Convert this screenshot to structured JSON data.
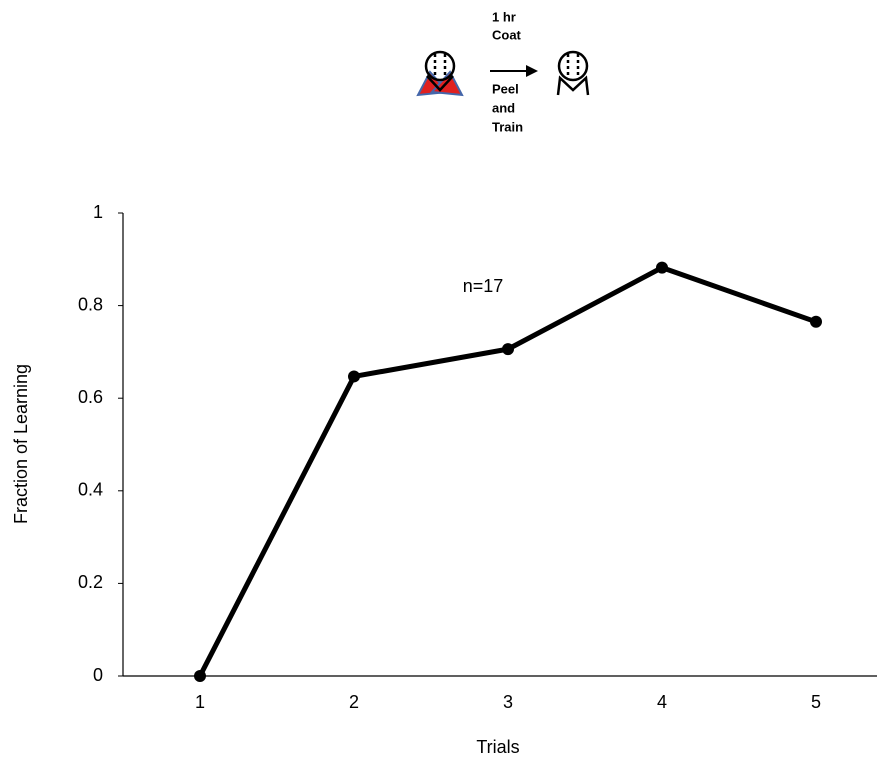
{
  "chart_data": {
    "type": "line",
    "diagram": {
      "above_arrow": [
        "1 hr",
        "Coat"
      ],
      "below_arrow": [
        "Peel",
        "and",
        "Train"
      ]
    },
    "annotation": "n=17",
    "x_label": "Trials",
    "y_label": "Fraction of Learning",
    "categories": [
      "1",
      "2",
      "3",
      "4",
      "5"
    ],
    "values": [
      0,
      0.647,
      0.706,
      0.882,
      0.765
    ],
    "color": "#000000",
    "ylim": [
      0,
      1
    ],
    "yticks": [
      0,
      0.2,
      0.4,
      0.6,
      0.8,
      1
    ],
    "grid": false
  }
}
